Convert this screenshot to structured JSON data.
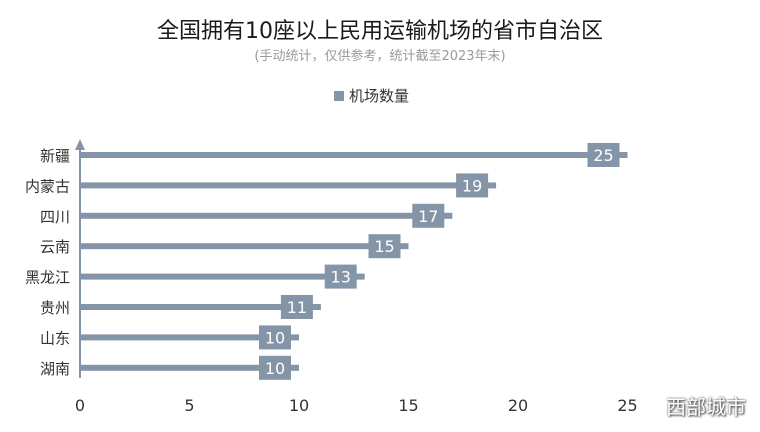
{
  "chart_data": {
    "type": "bar",
    "orientation": "horizontal",
    "title": "全国拥有10座以上民用运输机场的省市自治区",
    "subtitle": "(手动统计，仅供参考，统计截至2023年末)",
    "legend": "机场数量",
    "legend_position": "top",
    "categories": [
      "新疆",
      "内蒙古",
      "四川",
      "云南",
      "黑龙江",
      "贵州",
      "山东",
      "湖南"
    ],
    "values": [
      25,
      19,
      17,
      15,
      13,
      11,
      10,
      10
    ],
    "xlim": [
      0,
      25
    ],
    "xticks": [
      0,
      5,
      10,
      15,
      20,
      25
    ],
    "grid": false,
    "colors": {
      "bar": "#8595a8",
      "label_bg": "#8595a8",
      "label_text": "#ffffff",
      "axis": "#8595a8",
      "title": "#1a1a1a",
      "subtitle": "#9a9a9a",
      "text": "#333333"
    }
  },
  "watermark": "西部城市"
}
